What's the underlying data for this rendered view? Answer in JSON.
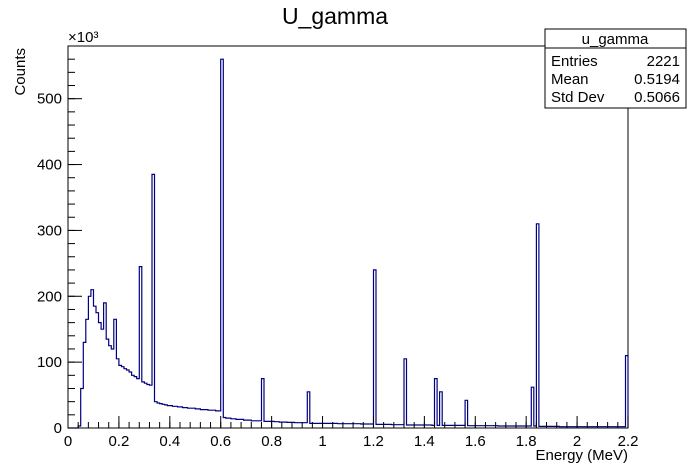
{
  "chart_data": {
    "type": "histogram",
    "title": "U_gamma",
    "xlabel": "Energy (MeV)",
    "ylabel": "Counts",
    "y_exponent": "×10³",
    "y_scale_factor": 1000,
    "xlim": [
      0,
      2.2
    ],
    "ylim": [
      0,
      580000
    ],
    "grid": false,
    "line_color": "#000080",
    "x_ticks": [
      0,
      0.2,
      0.4,
      0.6,
      0.8,
      1,
      1.2,
      1.4,
      1.6,
      1.8,
      2,
      2.2
    ],
    "x_tick_labels": [
      "0",
      "0.2",
      "0.4",
      "0.6",
      "0.8",
      "1",
      "1.2",
      "1.4",
      "1.6",
      "1.8",
      "2",
      "2.2"
    ],
    "y_ticks": [
      0,
      100000,
      200000,
      300000,
      400000,
      500000
    ],
    "y_tick_labels": [
      "0",
      "100",
      "200",
      "300",
      "400",
      "500"
    ],
    "stats_box": {
      "name": "u_gamma",
      "rows": [
        {
          "label": "Entries",
          "value": "2221"
        },
        {
          "label": "Mean",
          "value": "0.5194"
        },
        {
          "label": "Std Dev",
          "value": "0.5066"
        }
      ],
      "placement": "top-right"
    },
    "bin_width": 0.01,
    "counts": [
      0,
      0,
      0,
      0,
      3000,
      60000,
      130000,
      165000,
      200000,
      210000,
      185000,
      175000,
      160000,
      150000,
      190000,
      135000,
      125000,
      120000,
      165000,
      105000,
      95000,
      93000,
      90000,
      88000,
      85000,
      80000,
      78000,
      75000,
      245000,
      70000,
      68000,
      66000,
      65000,
      385000,
      40000,
      38000,
      37000,
      36000,
      35000,
      34000,
      34000,
      33000,
      33000,
      32000,
      32000,
      31000,
      31000,
      30000,
      30000,
      30000,
      29000,
      29000,
      28000,
      28000,
      28000,
      27000,
      27000,
      27000,
      26000,
      26000,
      560000,
      16000,
      15000,
      15000,
      14000,
      14000,
      13000,
      13000,
      13000,
      12000,
      12000,
      12000,
      11000,
      11000,
      11000,
      11000,
      75000,
      10000,
      10000,
      10000,
      10000,
      9500,
      9500,
      9000,
      9000,
      9000,
      8500,
      8500,
      8500,
      8000,
      8000,
      8000,
      8000,
      8000,
      55000,
      7000,
      7000,
      7000,
      7000,
      7000,
      7000,
      7000,
      7000,
      7000,
      7000,
      7000,
      6500,
      6500,
      6500,
      6500,
      6500,
      6500,
      6500,
      6500,
      6500,
      6000,
      6000,
      6000,
      6000,
      6000,
      240000,
      5500,
      5500,
      5500,
      5500,
      5500,
      5500,
      5000,
      5000,
      5000,
      5000,
      5000,
      105000,
      4500,
      4500,
      4500,
      4500,
      4500,
      4500,
      4500,
      4500,
      4500,
      4500,
      4000,
      75000,
      4000,
      55000,
      4000,
      4000,
      4000,
      4000,
      4000,
      4000,
      4000,
      4000,
      4000,
      42000,
      3500,
      3500,
      3500,
      3500,
      3500,
      3500,
      3500,
      3500,
      3500,
      3500,
      3500,
      3500,
      3000,
      3000,
      3000,
      3000,
      3000,
      3000,
      3000,
      3000,
      3000,
      3000,
      3000,
      3000,
      3000,
      62000,
      3000,
      310000,
      2500,
      2500,
      2500,
      2500,
      2500,
      2500,
      2500,
      2500,
      2000,
      2000,
      2000,
      2000,
      2000,
      2000,
      2000,
      2000,
      2000,
      2000,
      2000,
      2000,
      2000,
      2000,
      2000,
      2000,
      2000,
      2000,
      2000,
      2000,
      2000,
      2000,
      2000,
      2000,
      2000,
      2000,
      110000
    ]
  }
}
